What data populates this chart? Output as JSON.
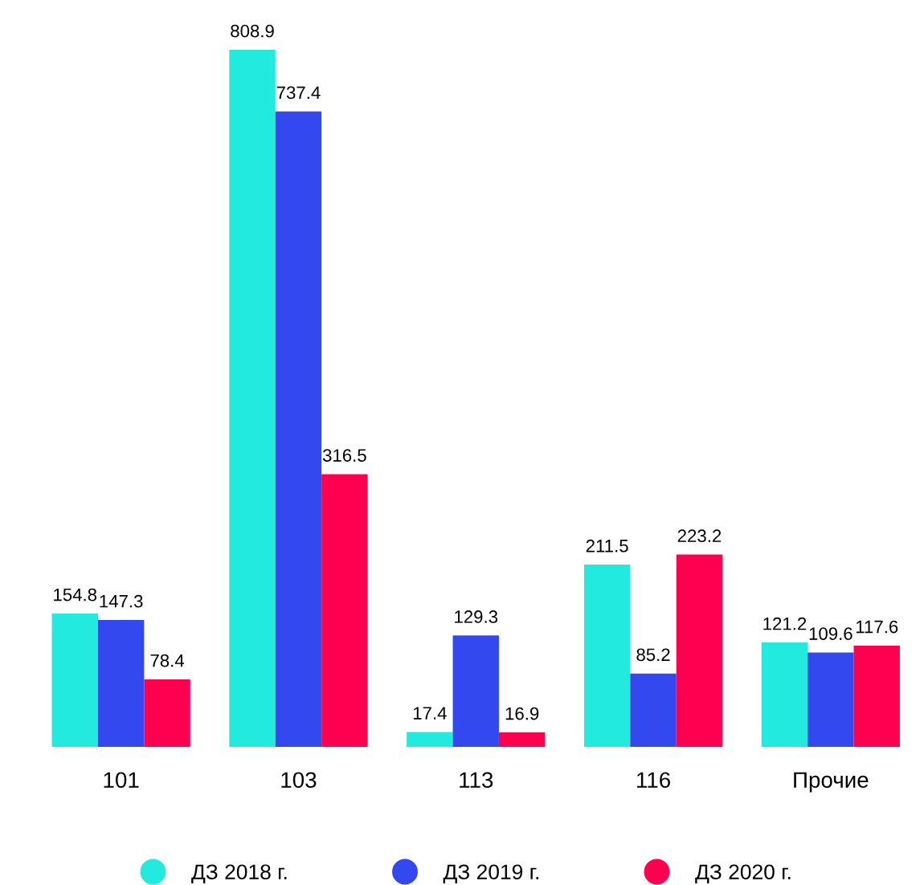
{
  "chart_data": {
    "type": "bar",
    "categories": [
      "101",
      "103",
      "113",
      "116",
      "Прочие"
    ],
    "series": [
      {
        "name": "ДЗ 2018 г.",
        "color": "#22eadf",
        "values": [
          154.8,
          808.9,
          17.4,
          211.5,
          121.2
        ]
      },
      {
        "name": "ДЗ 2019 г.",
        "color": "#3448f0",
        "values": [
          147.3,
          737.4,
          129.3,
          85.2,
          109.6
        ]
      },
      {
        "name": "ДЗ 2020 г.",
        "color": "#ff0050",
        "values": [
          78.4,
          316.5,
          16.9,
          223.2,
          117.6
        ]
      }
    ],
    "data_labels": true,
    "grid": false,
    "legend": "bottom"
  }
}
